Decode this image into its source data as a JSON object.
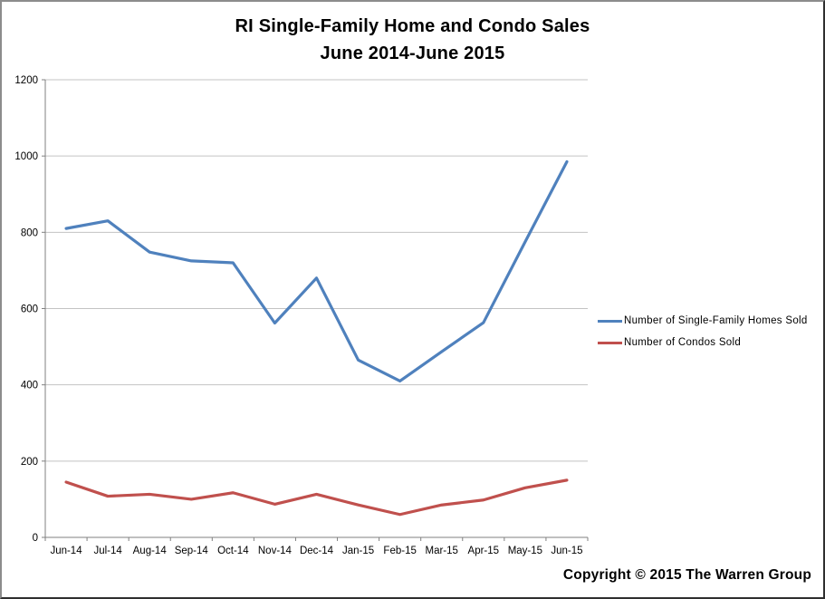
{
  "title": {
    "line1": "RI Single-Family Home and Condo Sales",
    "line2": "June 2014-June 2015"
  },
  "copyright": "Copyright © 2015 The Warren Group",
  "colors": {
    "series_blue": "#4F81BD",
    "series_red": "#C0504D",
    "gridline": "#C3C3C3",
    "axis": "#808080",
    "background": "#FFFFFF",
    "text": "#000000"
  },
  "chart_data": {
    "type": "line",
    "title": "RI Single-Family Home and Condo Sales June 2014-June 2015",
    "categories": [
      "Jun-14",
      "Jul-14",
      "Aug-14",
      "Sep-14",
      "Oct-14",
      "Nov-14",
      "Dec-14",
      "Jan-15",
      "Feb-15",
      "Mar-15",
      "Apr-15",
      "May-15",
      "Jun-15"
    ],
    "series": [
      {
        "name": "Number of Single-Family Homes Sold",
        "color": "#4F81BD",
        "values": [
          810,
          830,
          748,
          725,
          720,
          562,
          680,
          465,
          410,
          487,
          563,
          775,
          985
        ]
      },
      {
        "name": "Number of Condos Sold",
        "color": "#C0504D",
        "values": [
          145,
          108,
          113,
          100,
          117,
          87,
          113,
          85,
          60,
          85,
          98,
          130,
          150
        ]
      }
    ],
    "xlabel": "",
    "ylabel": "",
    "ylim": [
      0,
      1200
    ],
    "ytick_step": 200,
    "yticks": [
      0,
      200,
      400,
      600,
      800,
      1000,
      1200
    ],
    "grid": "horizontal-only",
    "legend_position": "right"
  }
}
